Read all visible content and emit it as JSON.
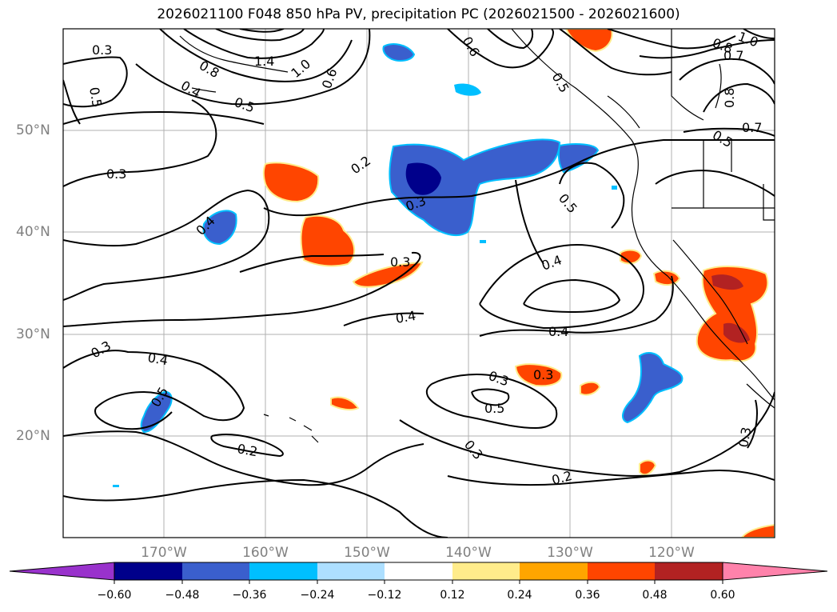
{
  "title": "2026021100 F048 850 hPa PV, precipitation PC (2026021500 - 2026021600)",
  "lat_labels": [
    "50°N",
    "40°N",
    "30°N",
    "20°N"
  ],
  "lon_labels": [
    "170°W",
    "160°W",
    "150°W",
    "140°W",
    "130°W",
    "120°W"
  ],
  "colorbar": {
    "ticks": [
      "−0.60",
      "−0.48",
      "−0.36",
      "−0.24",
      "−0.12",
      "0.12",
      "0.24",
      "0.36",
      "0.48",
      "0.60"
    ],
    "colors": [
      "#9932CC",
      "#00008B",
      "#3A5FCD",
      "#00BFFF",
      "#ADDFFF",
      "#FFFFFF",
      "#FFEC8B",
      "#FFA500",
      "#FF4500",
      "#B22222",
      "#FF82AB"
    ]
  },
  "contour_labels": [
    "0.3",
    "0.5",
    "0.4",
    "0.8",
    "1.4",
    "1.0",
    "0.6",
    "0.5",
    "0.6",
    "0.5",
    "0.8",
    "0.7",
    "1.0",
    "0.8",
    "0.7",
    "0.5",
    "0.3",
    "0.2",
    "0.3",
    "0.4",
    "0.5",
    "0.3",
    "0.4",
    "0.4",
    "0.3",
    "0.4",
    "0.5",
    "0.4",
    "0.5",
    "0.3",
    "0.3",
    "0.2",
    "0.2",
    "0.3",
    "0.3"
  ]
}
